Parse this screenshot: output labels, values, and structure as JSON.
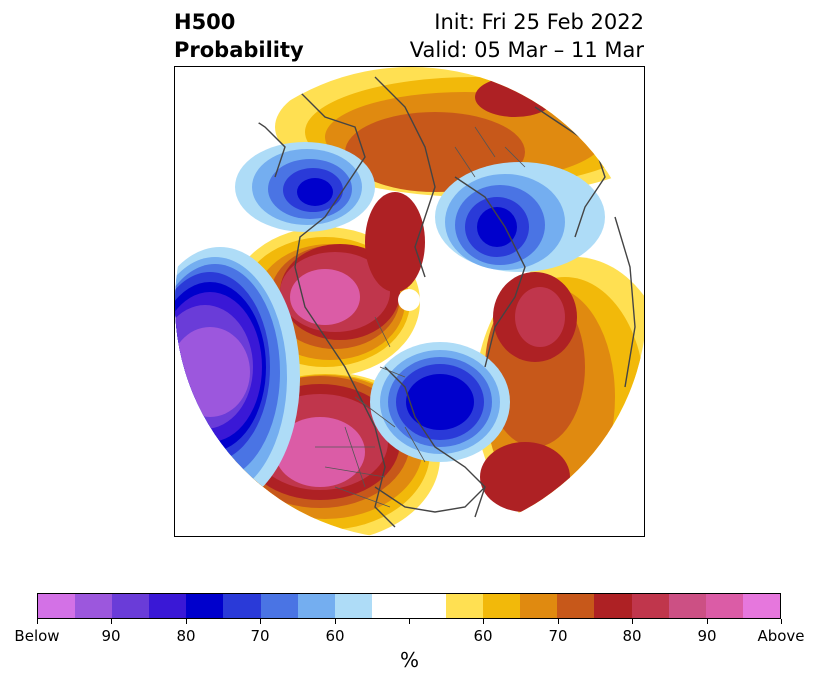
{
  "header": {
    "title_line1": "H500",
    "title_line2": "Probability",
    "init_text": "Init: Fri 25 Feb 2022",
    "valid_text": "Valid: 05 Mar – 11 Mar"
  },
  "map": {
    "projection": "north-polar-stereographic",
    "variable": "H500 probability",
    "anomaly_regions": [
      {
        "name": "northeast-pacific-ridge",
        "category": "above",
        "level": 90
      },
      {
        "name": "western-north-america-ridge",
        "category": "above",
        "level": 90
      },
      {
        "name": "greenland-ridge",
        "category": "above",
        "level": 80
      },
      {
        "name": "siberia-ridge",
        "category": "above",
        "level": 70
      },
      {
        "name": "central-asia-ridge",
        "category": "above",
        "level": 80
      },
      {
        "name": "eastern-canada-trough",
        "category": "below",
        "level": 80
      },
      {
        "name": "north-pacific-trough",
        "category": "below",
        "level": 90
      },
      {
        "name": "scandinavia-trough",
        "category": "below",
        "level": 80
      },
      {
        "name": "north-atlantic-trough",
        "category": "below",
        "level": 80
      }
    ]
  },
  "colorbar": {
    "title": "%",
    "colors": [
      "#d371e6",
      "#9c57dd",
      "#6a3cd8",
      "#3a18d6",
      "#0000cc",
      "#2a3ad8",
      "#4a74e4",
      "#74aef0",
      "#aedcf7",
      "#ffffff",
      "#ffffff",
      "#ffe052",
      "#f2b90a",
      "#e08a10",
      "#c7581a",
      "#ae2124",
      "#c0364c",
      "#cc5084",
      "#db5ca6",
      "#e677dd"
    ],
    "tick_labels": [
      "Below",
      "90",
      "80",
      "70",
      "60",
      "",
      "60",
      "70",
      "80",
      "90",
      "Above"
    ]
  }
}
